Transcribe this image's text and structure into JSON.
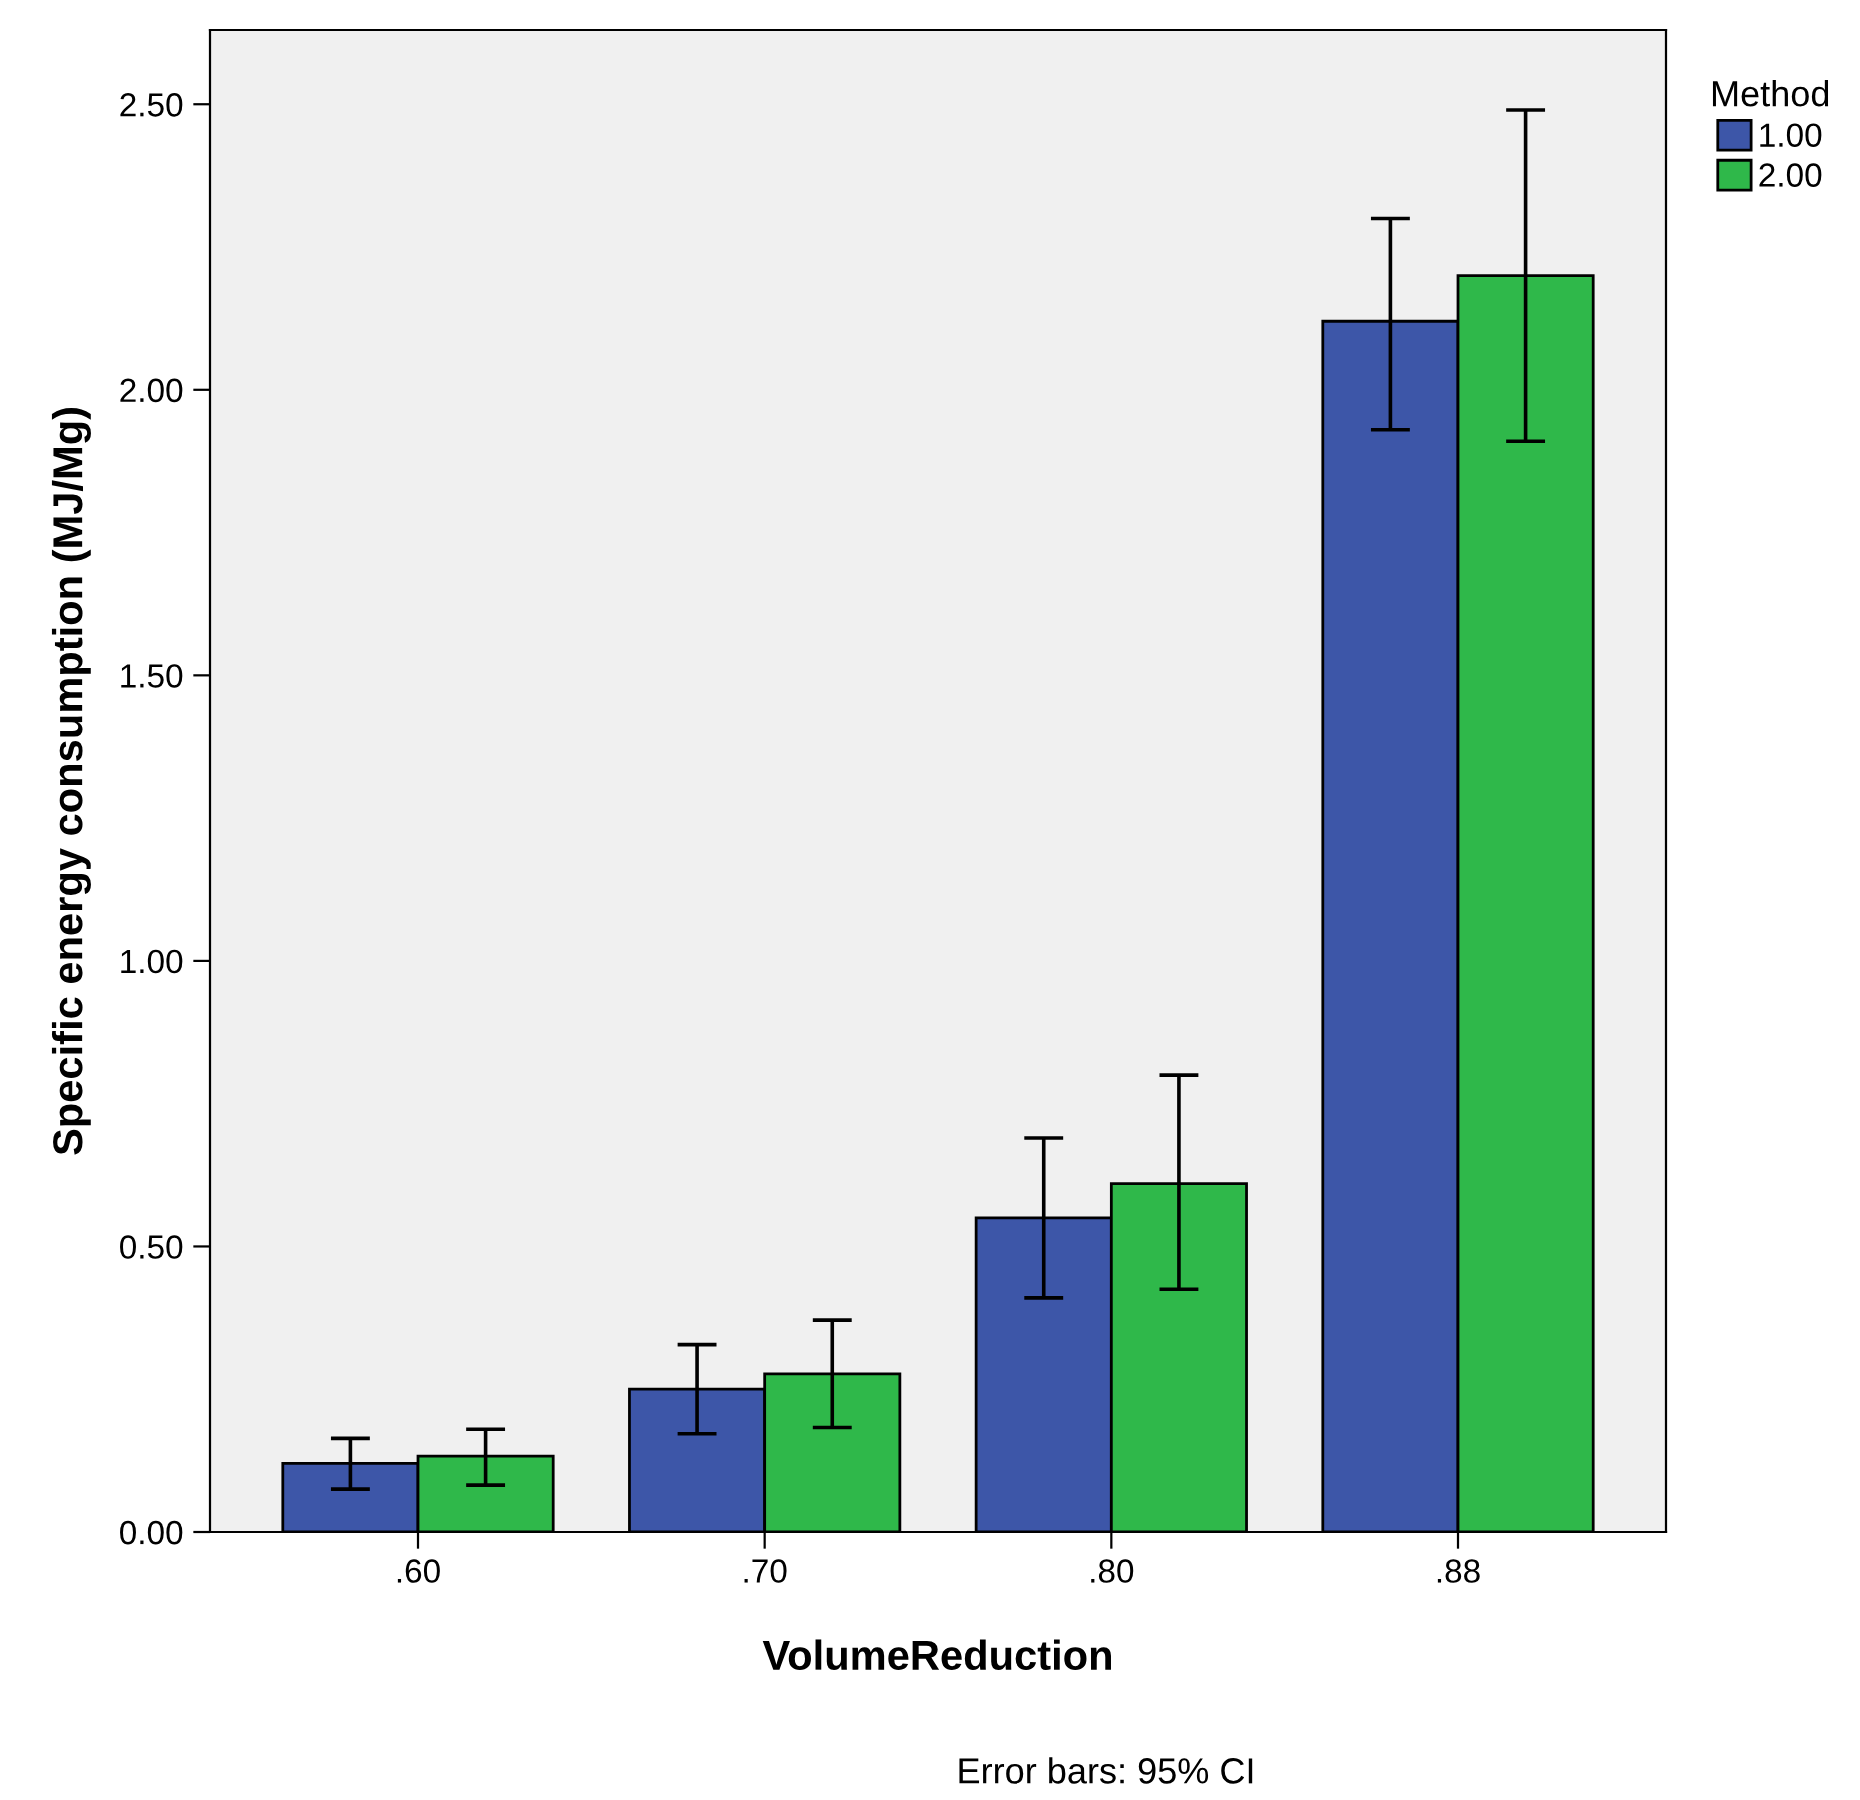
{
  "chart_data": {
    "type": "bar",
    "xlabel": "VolumeReduction",
    "ylabel": "Specific energy consumption (MJ/Mg)",
    "legend_title": "Method",
    "legend": "top right",
    "grid": false,
    "categories": [
      ".60",
      ".70",
      ".80",
      ".88"
    ],
    "series": [
      {
        "name": "1.00",
        "color": "#3d56a8",
        "values": [
          0.12,
          0.25,
          0.55,
          2.12
        ],
        "errors": [
          [
            0.075,
            0.164
          ],
          [
            0.172,
            0.328
          ],
          [
            0.41,
            0.69
          ],
          [
            1.93,
            2.3
          ]
        ]
      },
      {
        "name": "2.00",
        "color": "#2fb84a",
        "values": [
          0.133,
          0.277,
          0.61,
          2.2
        ],
        "errors": [
          [
            0.082,
            0.18
          ],
          [
            0.183,
            0.371
          ],
          [
            0.425,
            0.8
          ],
          [
            1.91,
            2.49
          ]
        ]
      }
    ],
    "ylim": [
      0,
      2.63
    ],
    "yticks": [
      {
        "value": 0,
        "label": "0.00"
      },
      {
        "value": 0.5,
        "label": "0.50"
      },
      {
        "value": 1,
        "label": "1.00"
      },
      {
        "value": 1.5,
        "label": "1.50"
      },
      {
        "value": 2,
        "label": "2.00"
      },
      {
        "value": 2.5,
        "label": "2.50"
      }
    ],
    "annotations": [
      "Error bars: 95% CI"
    ]
  }
}
